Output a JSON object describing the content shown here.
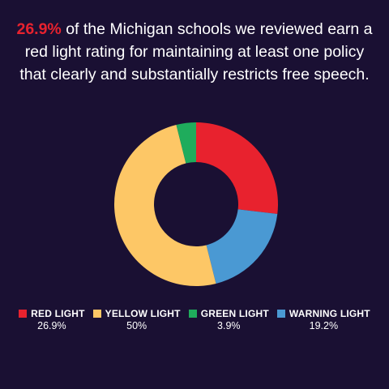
{
  "headline": {
    "highlight": "26.9%",
    "text": " of the Michigan schools we reviewed earn a red light rating for maintaining at least one policy that clearly and substantially restricts free speech."
  },
  "colors": {
    "background": "#1a1033",
    "highlight": "#e8222e"
  },
  "chart_data": {
    "type": "pie",
    "donut": true,
    "start_angle_deg": 0,
    "direction": "clockwise",
    "slices": [
      {
        "label": "RED LIGHT",
        "value": 26.9,
        "display": "26.9%",
        "color": "#e8222e"
      },
      {
        "label": "WARNING LIGHT",
        "value": 19.2,
        "display": "19.2%",
        "color": "#4a99d3"
      },
      {
        "label": "YELLOW LIGHT",
        "value": 50,
        "display": "50%",
        "color": "#fdc766"
      },
      {
        "label": "GREEN LIGHT",
        "value": 3.9,
        "display": "3.9%",
        "color": "#1fac5c"
      }
    ],
    "legend_order": [
      "RED LIGHT",
      "YELLOW LIGHT",
      "GREEN LIGHT",
      "WARNING LIGHT"
    ],
    "legend_position": "bottom"
  }
}
